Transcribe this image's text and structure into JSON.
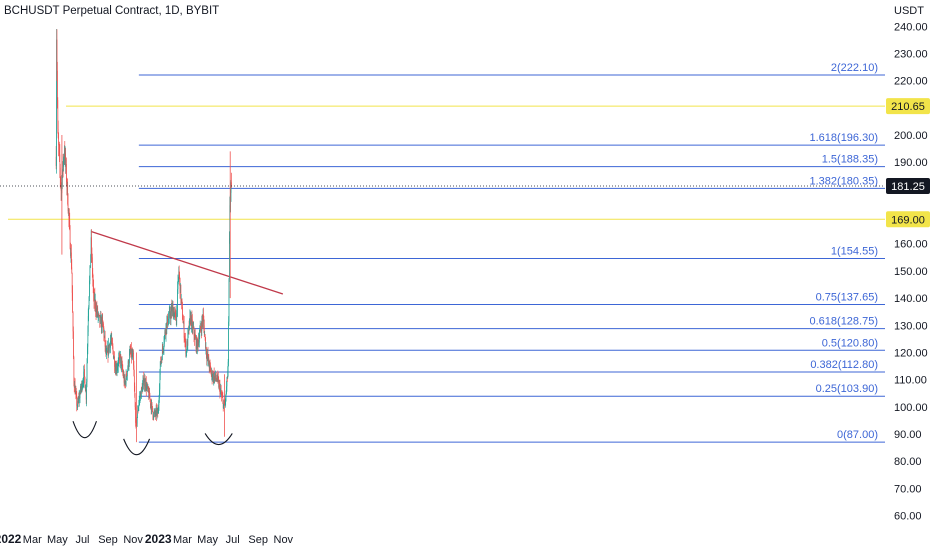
{
  "header": {
    "title": "BCHUSDT Perpetual Contract, 1D, BYBIT"
  },
  "chart_data": {
    "type": "candlestick",
    "currency": "USDT",
    "y_ticks": [
      240,
      230,
      220,
      210,
      200,
      190,
      180,
      170,
      160,
      150,
      140,
      130,
      120,
      110,
      100,
      90,
      80,
      70,
      60
    ],
    "y_tick_labels": [
      "240.00",
      "230.00",
      "220.00",
      "210.00",
      "200.00",
      "190.00",
      "180.00",
      "170.00",
      "160.00",
      "150.00",
      "140.00",
      "130.00",
      "120.00",
      "110.00",
      "100.00",
      "90.00",
      "80.00",
      "70.00",
      "60.00"
    ],
    "x_labels": [
      "2022",
      "Mar",
      "May",
      "Jul",
      "Sep",
      "Nov",
      "2023",
      "Mar",
      "May",
      "Jul",
      "Sep",
      "Nov"
    ],
    "x_label_dates": [
      "2022-01-01",
      "2022-03-01",
      "2022-05-01",
      "2022-07-01",
      "2022-09-01",
      "2022-11-01",
      "2023-01-01",
      "2023-03-01",
      "2023-05-01",
      "2023-07-01",
      "2023-09-01",
      "2023-11-01"
    ],
    "current_price": {
      "label": "181.25",
      "value": 181.25
    },
    "horizontal_levels": [
      {
        "label": "210.65",
        "value": 210.65,
        "color": "#f2e44a",
        "start_date": "2022-05-22"
      },
      {
        "label": "169.00",
        "value": 169.0,
        "color": "#f2e44a",
        "start_date": "2022-01-01"
      }
    ],
    "fib_levels": [
      {
        "label": "2(222.10)",
        "value": 222.1
      },
      {
        "label": "1.618(196.30)",
        "value": 196.3
      },
      {
        "label": "1.5(188.35)",
        "value": 188.35
      },
      {
        "label": "1.382(180.35)",
        "value": 180.35
      },
      {
        "label": "1(154.55)",
        "value": 154.55
      },
      {
        "label": "0.75(137.65)",
        "value": 137.65
      },
      {
        "label": "0.618(128.75)",
        "value": 128.75
      },
      {
        "label": "0.5(120.80)",
        "value": 120.8
      },
      {
        "label": "0.382(112.80)",
        "value": 112.8
      },
      {
        "label": "0.25(103.90)",
        "value": 103.9
      },
      {
        "label": "0(87.00)",
        "value": 87.0
      }
    ],
    "fib_range_dates": [
      "2022-11-15",
      "2023-08-15"
    ],
    "trendline": {
      "color": "#c0394a",
      "from": {
        "date": "2022-07-22",
        "value": 164.5
      },
      "to": {
        "date": "2023-10-31",
        "value": 141.5
      }
    },
    "arcs": [
      {
        "from_date": "2022-06-08",
        "to_date": "2022-08-04",
        "value": 92.5,
        "depth": 7
      },
      {
        "from_date": "2022-10-09",
        "to_date": "2022-12-11",
        "value": 86.0,
        "depth": 6.5
      },
      {
        "from_date": "2023-04-25",
        "to_date": "2023-06-30",
        "value": 88.0,
        "depth": 3
      }
    ],
    "ohlc_anchors": [
      [
        "2022-04-28",
        192,
        250
      ],
      [
        "2022-05-02",
        250,
        200
      ],
      [
        "2022-05-10",
        200,
        180
      ],
      [
        "2022-05-18",
        190,
        195
      ],
      [
        "2022-05-25",
        205,
        180
      ],
      [
        "2022-06-05",
        180,
        150
      ],
      [
        "2022-06-10",
        150,
        110
      ],
      [
        "2022-06-18",
        110,
        100
      ],
      [
        "2022-06-25",
        100,
        105
      ],
      [
        "2022-07-05",
        105,
        112
      ],
      [
        "2022-07-10",
        112,
        104
      ],
      [
        "2022-07-15",
        104,
        135
      ],
      [
        "2022-07-22",
        135,
        160
      ],
      [
        "2022-07-28",
        160,
        140
      ],
      [
        "2022-08-10",
        140,
        132
      ],
      [
        "2022-08-20",
        132,
        130
      ],
      [
        "2022-08-28",
        130,
        118
      ],
      [
        "2022-09-08",
        118,
        125
      ],
      [
        "2022-09-20",
        125,
        114
      ],
      [
        "2022-10-01",
        114,
        118
      ],
      [
        "2022-10-12",
        118,
        108
      ],
      [
        "2022-10-25",
        108,
        120
      ],
      [
        "2022-11-01",
        120,
        118
      ],
      [
        "2022-11-08",
        118,
        92
      ],
      [
        "2022-11-15",
        92,
        102
      ],
      [
        "2022-11-28",
        102,
        110
      ],
      [
        "2022-12-10",
        110,
        104
      ],
      [
        "2022-12-20",
        104,
        97
      ],
      [
        "2023-01-01",
        97,
        98
      ],
      [
        "2023-01-06",
        98,
        115
      ],
      [
        "2023-01-20",
        115,
        130
      ],
      [
        "2023-02-05",
        130,
        136
      ],
      [
        "2023-02-14",
        136,
        132
      ],
      [
        "2023-02-20",
        132,
        150
      ],
      [
        "2023-02-28",
        150,
        135
      ],
      [
        "2023-03-10",
        135,
        120
      ],
      [
        "2023-03-20",
        120,
        133
      ],
      [
        "2023-04-05",
        133,
        122
      ],
      [
        "2023-04-20",
        122,
        133
      ],
      [
        "2023-04-28",
        133,
        120
      ],
      [
        "2023-05-10",
        120,
        112
      ],
      [
        "2023-05-25",
        112,
        110
      ],
      [
        "2023-06-10",
        110,
        100
      ],
      [
        "2023-06-14",
        100,
        103
      ],
      [
        "2023-06-20",
        103,
        115
      ],
      [
        "2023-06-24",
        115,
        175
      ],
      [
        "2023-06-28",
        175,
        181.25
      ]
    ]
  }
}
